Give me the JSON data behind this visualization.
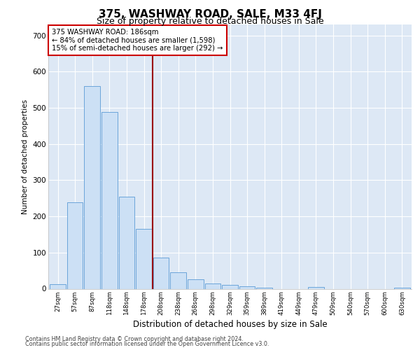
{
  "title": "375, WASHWAY ROAD, SALE, M33 4FJ",
  "subtitle": "Size of property relative to detached houses in Sale",
  "xlabel": "Distribution of detached houses by size in Sale",
  "ylabel": "Number of detached properties",
  "bar_labels": [
    "27sqm",
    "57sqm",
    "87sqm",
    "118sqm",
    "148sqm",
    "178sqm",
    "208sqm",
    "238sqm",
    "268sqm",
    "298sqm",
    "329sqm",
    "359sqm",
    "389sqm",
    "419sqm",
    "449sqm",
    "479sqm",
    "509sqm",
    "540sqm",
    "570sqm",
    "600sqm",
    "630sqm"
  ],
  "bar_values": [
    12,
    238,
    560,
    488,
    255,
    165,
    87,
    46,
    27,
    15,
    10,
    7,
    3,
    0,
    0,
    4,
    0,
    0,
    0,
    0,
    3
  ],
  "bar_color": "#cce0f5",
  "bar_edge_color": "#5b9bd5",
  "property_line_x": 5.5,
  "property_label": "375 WASHWAY ROAD: 186sqm",
  "annotation_line1": "← 84% of detached houses are smaller (1,598)",
  "annotation_line2": "15% of semi-detached houses are larger (292) →",
  "vline_color": "#990000",
  "annotation_box_edge": "#cc0000",
  "ylim": [
    0,
    730
  ],
  "yticks": [
    0,
    100,
    200,
    300,
    400,
    500,
    600,
    700
  ],
  "footer1": "Contains HM Land Registry data © Crown copyright and database right 2024.",
  "footer2": "Contains public sector information licensed under the Open Government Licence v3.0.",
  "plot_bg": "#dde8f5",
  "grid_color": "#ffffff",
  "title_fontsize": 11,
  "subtitle_fontsize": 9
}
